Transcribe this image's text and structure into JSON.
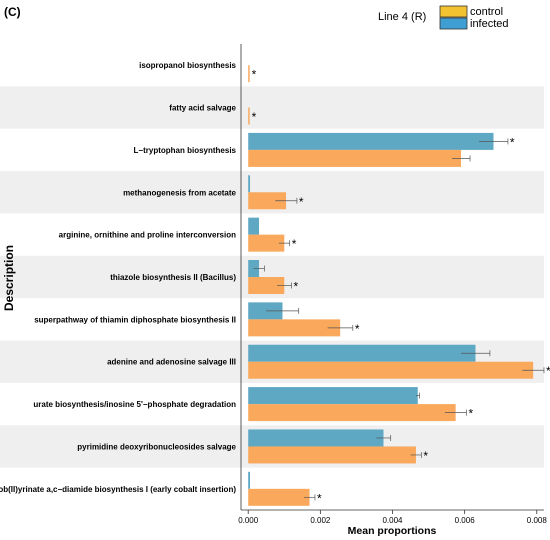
{
  "panel_label": "(C)",
  "legend": {
    "title": "Line 4 (R)",
    "items": [
      {
        "label": "control",
        "color": "#f2c230"
      },
      {
        "label": "infected",
        "color": "#3f9ed2"
      }
    ]
  },
  "colors": {
    "control_bar": "#f9a85c",
    "infected_bar": "#5fa8c3",
    "band": "#efefef"
  },
  "chart_data": {
    "type": "bar",
    "orientation": "horizontal",
    "ylabel": "Description",
    "xlabel": "Mean proportions",
    "xlim": [
      -0.0002,
      0.0082
    ],
    "xticks": [
      {
        "value": 0.0,
        "label": "0.000"
      },
      {
        "value": 0.002,
        "label": "0.002"
      },
      {
        "value": 0.004,
        "label": "0.004"
      },
      {
        "value": 0.006,
        "label": "0.006"
      },
      {
        "value": 0.008,
        "label": "0.008"
      }
    ],
    "categories": [
      "isopropanol biosynthesis",
      "fatty acid salvage",
      "L−tryptophan biosynthesis",
      "methanogenesis from acetate",
      "arginine, ornithine and proline interconversion",
      "thiazole biosynthesis II (Bacillus)",
      "superpathway of thiamin diphosphate biosynthesis II",
      "adenine and adenosine salvage III",
      "urate biosynthesis/inosine 5'−phosphate degradation",
      "pyrimidine deoxyribonucleosides salvage",
      "cob(II)yrinate a,c−diamide biosynthesis I (early cobalt insertion)"
    ],
    "significance_marker": "*",
    "series": [
      {
        "name": "infected",
        "values": [
          0.0,
          0.0,
          0.0068,
          5e-05,
          0.0003,
          0.0003,
          0.00095,
          0.0063,
          0.0047,
          0.00375,
          5e-05
        ],
        "errors": [
          0.0,
          0.0,
          0.0004,
          0.0,
          0.0,
          0.00015,
          0.00045,
          0.0004,
          5e-05,
          0.0002,
          0.0
        ]
      },
      {
        "name": "control",
        "values": [
          4e-05,
          4e-05,
          0.0059,
          0.00105,
          0.001,
          0.001,
          0.00255,
          0.0079,
          0.00575,
          0.00465,
          0.0017
        ],
        "errors": [
          0.0,
          0.0,
          0.00025,
          0.0003,
          0.00015,
          0.0002,
          0.00035,
          0.0003,
          0.0003,
          0.00015,
          0.00015
        ]
      }
    ],
    "grid": false
  }
}
